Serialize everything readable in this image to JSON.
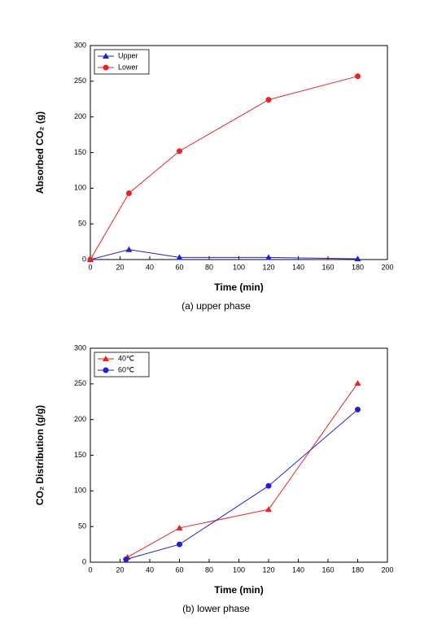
{
  "chart_data": [
    {
      "type": "line",
      "caption": "(a)  upper phase",
      "x_label": "Time (min)",
      "y_label": "Absorbed CO₂ (g)",
      "xlim": [
        0,
        200
      ],
      "xticks": [
        0,
        20,
        40,
        60,
        80,
        100,
        120,
        140,
        160,
        180,
        200
      ],
      "ylim": [
        0,
        300
      ],
      "yticks": [
        0,
        50,
        100,
        150,
        200,
        250,
        300
      ],
      "legend": "top-left",
      "series": [
        {
          "name": "Upper",
          "color": "#1f1fd8",
          "marker": "triangle",
          "x": [
            0,
            26,
            60,
            120,
            180
          ],
          "values": [
            0,
            14,
            3,
            3,
            1
          ]
        },
        {
          "name": "Lower",
          "color": "#ee2020",
          "marker": "circle",
          "x": [
            0,
            26,
            60,
            120,
            180
          ],
          "values": [
            0,
            93,
            152,
            224,
            257
          ]
        }
      ]
    },
    {
      "type": "line",
      "caption": "(b)  lower phase",
      "x_label": "Time (min)",
      "y_label": "CO₂ Distribution (g/g)",
      "xlim": [
        0,
        200
      ],
      "xticks": [
        0,
        20,
        40,
        60,
        80,
        100,
        120,
        140,
        160,
        180,
        200
      ],
      "ylim": [
        0,
        300
      ],
      "yticks": [
        0,
        50,
        100,
        150,
        200,
        250,
        300
      ],
      "legend": "top-left",
      "series": [
        {
          "name": "40℃",
          "color": "#ee2020",
          "marker": "triangle",
          "x": [
            25,
            60,
            120,
            180
          ],
          "values": [
            7,
            48,
            74,
            251
          ]
        },
        {
          "name": "60℃",
          "color": "#1f1fd8",
          "marker": "circle",
          "x": [
            24,
            60,
            120,
            180
          ],
          "values": [
            4,
            25,
            107,
            214
          ]
        }
      ]
    }
  ]
}
